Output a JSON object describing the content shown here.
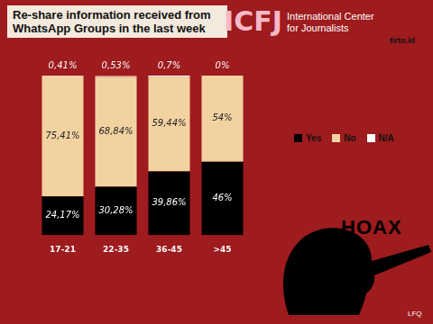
{
  "chart_data": {
    "type": "bar",
    "title": "Re-share information received from WhatsApp Groups in the last week",
    "categories": [
      "17-21",
      "22-35",
      "36-45",
      ">45"
    ],
    "series": [
      {
        "name": "Yes",
        "color": "#000000",
        "values": [
          24.17,
          30.28,
          39.86,
          46
        ],
        "value_labels": [
          "24,17%",
          "30,28%",
          "39,86%",
          "46%"
        ]
      },
      {
        "name": "No",
        "color": "#f3d2a2",
        "values": [
          75.41,
          68.84,
          59.44,
          54
        ],
        "value_labels": [
          "75,41%",
          "68,84%",
          "59,44%",
          "54%"
        ]
      },
      {
        "name": "N/A",
        "color": "#ffffff",
        "values": [
          0.41,
          0.53,
          0.7,
          0
        ],
        "value_labels": [
          "0,41%",
          "0,53%",
          "0,7%",
          "0%"
        ]
      }
    ],
    "ylim": [
      0,
      100
    ],
    "stacked": true,
    "data_labels": true,
    "tick_labels": "x",
    "grid": false,
    "legend": "right",
    "annotations": [
      "ICFJ",
      "International Center for Journalists",
      "tirto.id",
      "HOAX",
      "LFQ"
    ]
  }
}
